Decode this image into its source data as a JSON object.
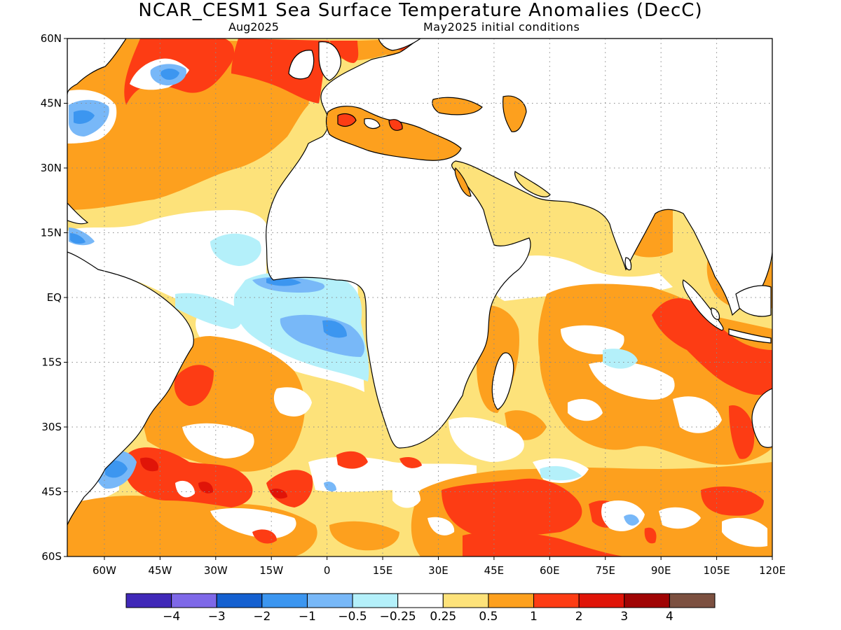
{
  "title": "NCAR_CESM1 Sea Surface Temperature Anomalies (DecC)",
  "subtitle_left": "Aug2025",
  "subtitle_right": "May2025 initial conditions",
  "map": {
    "lon_range": [
      -70,
      120
    ],
    "lat_range": [
      -60,
      60
    ],
    "lat_ticks": [
      {
        "value": 60,
        "label": "60N"
      },
      {
        "value": 45,
        "label": "45N"
      },
      {
        "value": 30,
        "label": "30N"
      },
      {
        "value": 15,
        "label": "15N"
      },
      {
        "value": 0,
        "label": "EQ"
      },
      {
        "value": -15,
        "label": "15S"
      },
      {
        "value": -30,
        "label": "30S"
      },
      {
        "value": -45,
        "label": "45S"
      },
      {
        "value": -60,
        "label": "60S"
      }
    ],
    "lon_ticks": [
      {
        "value": -60,
        "label": "60W"
      },
      {
        "value": -45,
        "label": "45W"
      },
      {
        "value": -30,
        "label": "30W"
      },
      {
        "value": -15,
        "label": "15W"
      },
      {
        "value": 0,
        "label": "0"
      },
      {
        "value": 15,
        "label": "15E"
      },
      {
        "value": 30,
        "label": "30E"
      },
      {
        "value": 45,
        "label": "45E"
      },
      {
        "value": 60,
        "label": "60E"
      },
      {
        "value": 75,
        "label": "75E"
      },
      {
        "value": 90,
        "label": "90E"
      },
      {
        "value": 105,
        "label": "105E"
      },
      {
        "value": 120,
        "label": "120E"
      }
    ],
    "grid": "dotted"
  },
  "colorbar": {
    "colors": [
      "#4028b8",
      "#7e68e8",
      "#1460d0",
      "#3c96f0",
      "#78b8f8",
      "#b4f0fa",
      "#ffffff",
      "#fde27a",
      "#fda01e",
      "#fd3c14",
      "#e01408",
      "#a00404",
      "#7c5040"
    ],
    "labels": [
      "−4",
      "−3",
      "−2",
      "−1",
      "−0.5",
      "−0.25",
      "0.25",
      "0.5",
      "1",
      "2",
      "3",
      "4"
    ]
  },
  "palette": {
    "land": "#ffffff",
    "coast": "#000000",
    "neutral": "#ffffff",
    "warm_light": "#fde27a",
    "warm": "#fda01e",
    "hot": "#fd3c14",
    "hotter": "#e01408",
    "cool_light": "#b4f0fa",
    "cool": "#78b8f8",
    "cooler": "#3c96f0",
    "coolest": "#1460d0"
  }
}
